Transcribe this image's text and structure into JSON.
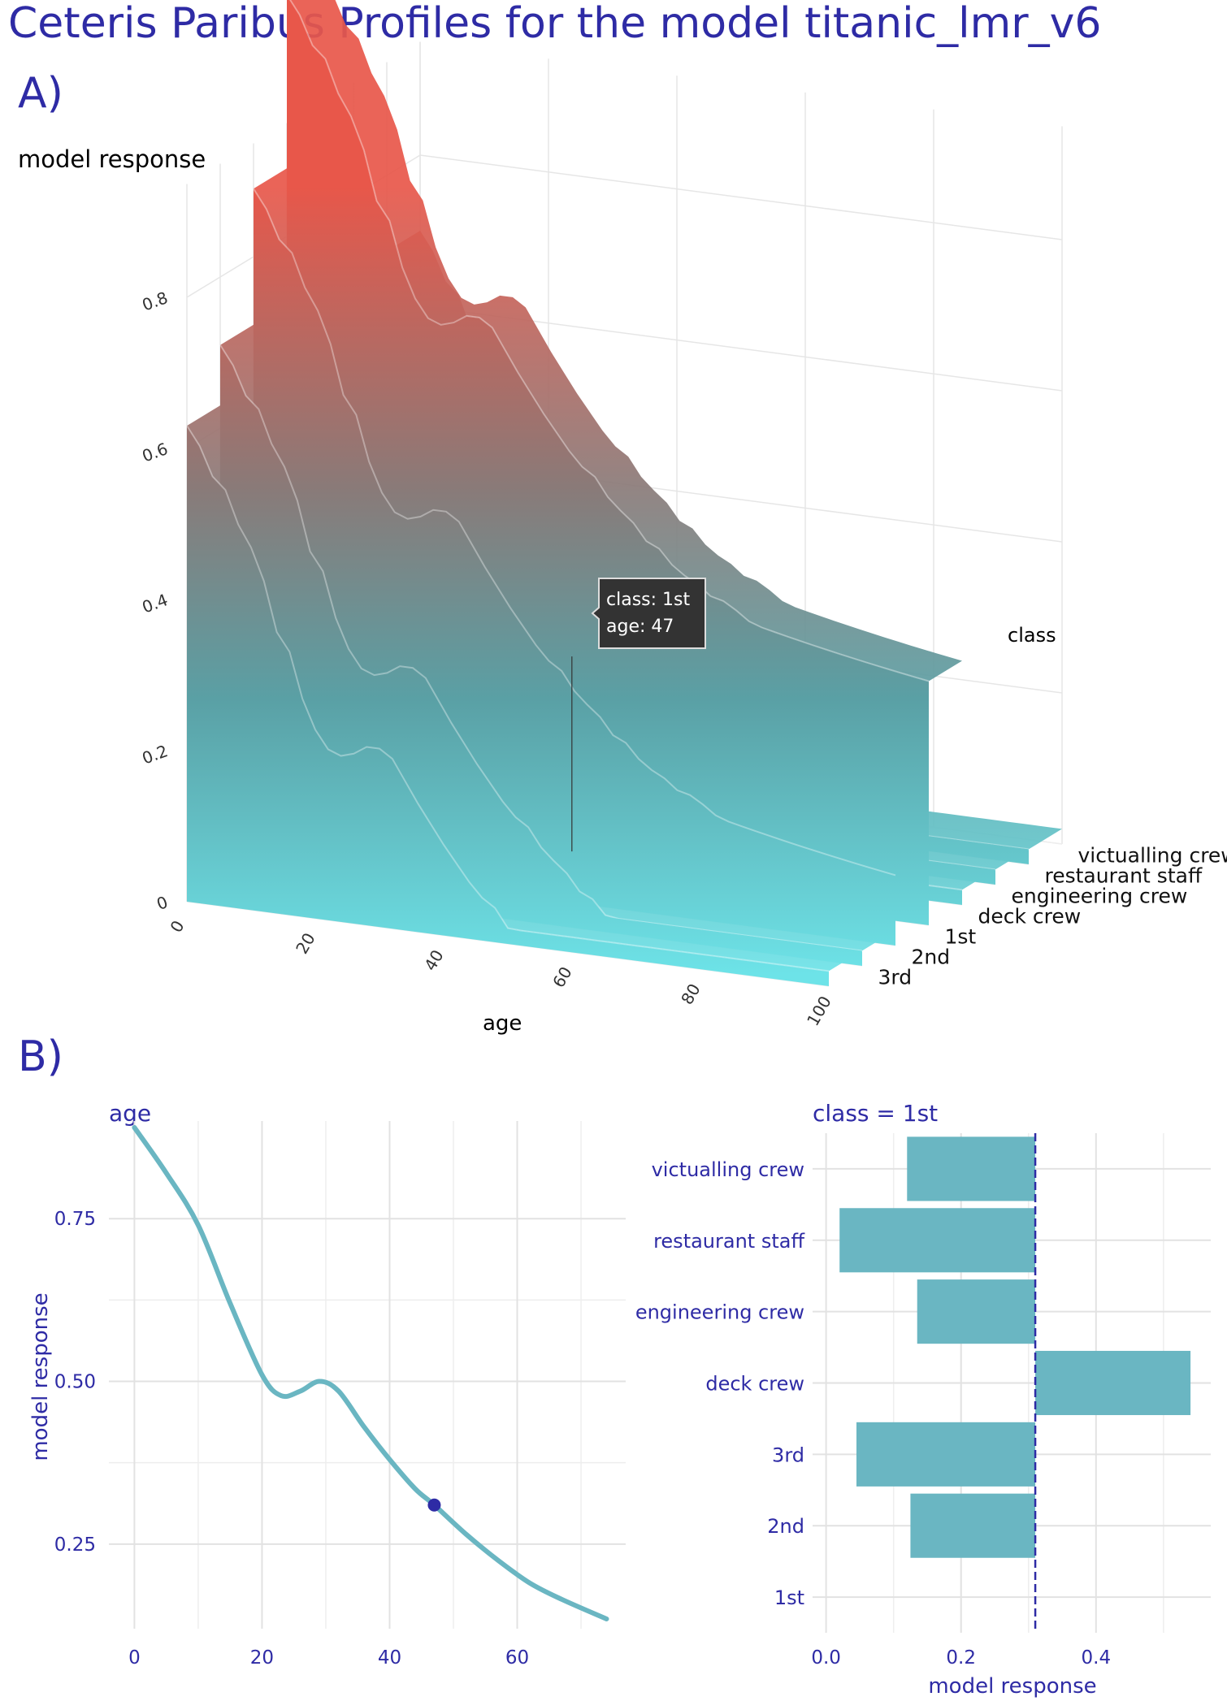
{
  "page": {
    "title": "Ceteris Paribus Profiles for the model titanic_lmr_v6",
    "panel_a_label": "A)",
    "panel_b_label": "B)"
  },
  "colors": {
    "title": "#2e2ba5",
    "teal": "#6ab6c2",
    "surface_low": "#6de3e8",
    "surface_high": "#e8574a",
    "point": "#2e2ba5",
    "grid": "#e6e6e6"
  },
  "chart_data": [
    {
      "type": "surface3d",
      "zlabel": "model response",
      "xlabel": "age",
      "legend_title": "class",
      "x_ticks": [
        0,
        20,
        40,
        60,
        80,
        100
      ],
      "z_ticks": [
        0,
        0.2,
        0.4,
        0.6,
        0.8
      ],
      "categories": [
        "3rd",
        "2nd",
        "1st",
        "deck crew",
        "engineering crew",
        "restaurant staff",
        "victualling crew"
      ],
      "category_offsets": [
        0.05,
        0.13,
        0.31,
        0.54,
        0.14,
        0.02,
        0.12
      ],
      "tooltip": {
        "line1": "class: 1st",
        "line2": "age: 47"
      }
    },
    {
      "type": "line",
      "title": "age",
      "ylabel": "model response",
      "xlim": [
        -4,
        77
      ],
      "ylim": [
        0.12,
        0.9
      ],
      "x_ticks": [
        0,
        20,
        40,
        60
      ],
      "y_ticks": [
        0.25,
        0.5,
        0.75
      ],
      "x": [
        0,
        5,
        10,
        15,
        20,
        23,
        26,
        29,
        32,
        36,
        40,
        44,
        47,
        52,
        57,
        62,
        67,
        74
      ],
      "y": [
        0.89,
        0.82,
        0.74,
        0.62,
        0.51,
        0.478,
        0.485,
        0.5,
        0.485,
        0.43,
        0.38,
        0.335,
        0.31,
        0.265,
        0.225,
        0.19,
        0.165,
        0.135
      ],
      "highlight_point": {
        "x": 47,
        "y": 0.31
      }
    },
    {
      "type": "bar",
      "orientation": "horizontal",
      "title": "class = 1st",
      "xlabel": "model response",
      "xlim": [
        -0.02,
        0.57
      ],
      "x_ticks": [
        0.0,
        0.2,
        0.4
      ],
      "reference_line": 0.31,
      "categories": [
        "victualling crew",
        "restaurant staff",
        "engineering crew",
        "deck crew",
        "3rd",
        "2nd",
        "1st"
      ],
      "values": [
        0.12,
        0.02,
        0.135,
        0.54,
        0.045,
        0.125,
        0.31
      ]
    }
  ]
}
